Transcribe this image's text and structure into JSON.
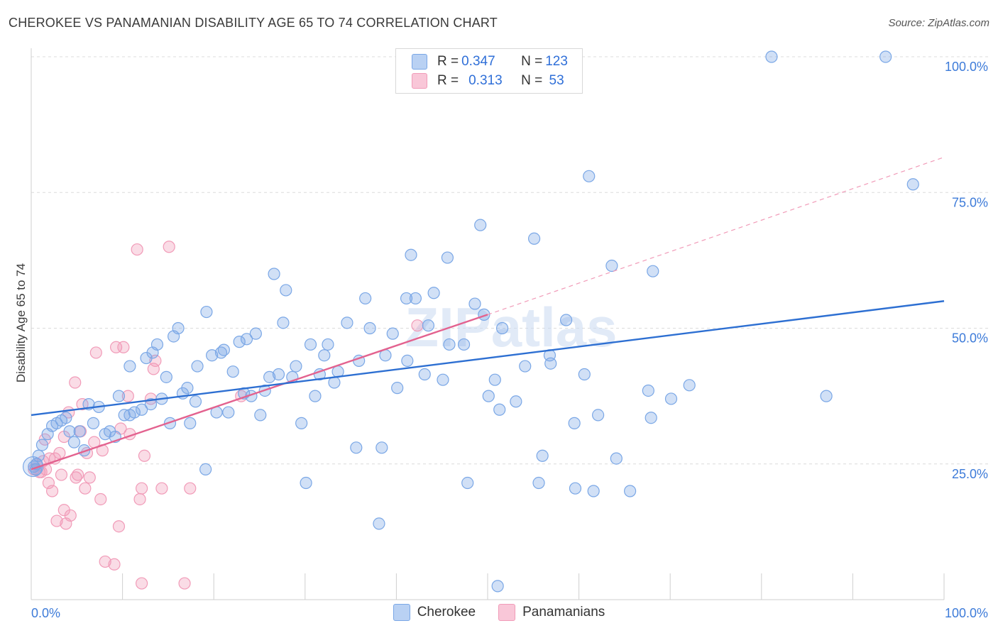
{
  "title": "CHEROKEE VS PANAMANIAN DISABILITY AGE 65 TO 74 CORRELATION CHART",
  "source": "Source: ZipAtlas.com",
  "watermark": "ZIPatlas",
  "legend_top": {
    "rows": [
      {
        "r_label": "R = ",
        "r_value": "0.347",
        "n_label": "N = ",
        "n_value": "123"
      },
      {
        "r_label": "R = ",
        "r_value": "0.313",
        "n_label": "N = ",
        "n_value": " 53"
      }
    ]
  },
  "chart_data": {
    "type": "scatter",
    "title": "CHEROKEE VS PANAMANIAN DISABILITY AGE 65 TO 74 CORRELATION CHART",
    "xlabel": "",
    "ylabel": "Disability Age 65 to 74",
    "xlim": [
      0,
      100
    ],
    "ylim": [
      0,
      100
    ],
    "x_tick_labels": [
      "0.0%",
      "100.0%"
    ],
    "y_tick_labels": [
      "25.0%",
      "50.0%",
      "75.0%",
      "100.0%"
    ],
    "y_ticks": [
      25,
      50,
      75,
      100
    ],
    "grid": "horizontal dashed",
    "legend_position": "bottom",
    "colors": {
      "cherokee": "#7aa7e6",
      "cherokee_line": "#2d6fd2",
      "panamanian": "#f19bb8",
      "panamanian_line": "#e3628f",
      "axis_text": "#3d7bd9"
    },
    "series": [
      {
        "name": "Cherokee",
        "r": 0.347,
        "n": 123,
        "trend": {
          "x": [
            0,
            100
          ],
          "y": [
            34.0,
            55.0
          ]
        },
        "points": [
          [
            0.3,
            24.5
          ],
          [
            0.5,
            24.0
          ],
          [
            0.6,
            25.0
          ],
          [
            0.8,
            26.5
          ],
          [
            1.2,
            28.5
          ],
          [
            1.8,
            30.5
          ],
          [
            2.3,
            32.0
          ],
          [
            2.8,
            32.5
          ],
          [
            3.3,
            33.0
          ],
          [
            3.8,
            33.5
          ],
          [
            4.2,
            31.0
          ],
          [
            4.7,
            29.0
          ],
          [
            5.3,
            31.0
          ],
          [
            5.8,
            27.5
          ],
          [
            6.3,
            36.0
          ],
          [
            6.8,
            32.5
          ],
          [
            7.4,
            35.5
          ],
          [
            8.1,
            30.5
          ],
          [
            8.6,
            31.0
          ],
          [
            9.2,
            30.0
          ],
          [
            9.6,
            37.5
          ],
          [
            10.2,
            34.0
          ],
          [
            10.8,
            43.0
          ],
          [
            10.8,
            34.0
          ],
          [
            11.3,
            34.5
          ],
          [
            12.1,
            35.0
          ],
          [
            12.6,
            44.5
          ],
          [
            13.1,
            36.0
          ],
          [
            13.3,
            45.5
          ],
          [
            13.8,
            47.0
          ],
          [
            14.3,
            37.0
          ],
          [
            14.8,
            41.0
          ],
          [
            15.2,
            32.5
          ],
          [
            15.6,
            48.5
          ],
          [
            16.1,
            50.0
          ],
          [
            16.6,
            38.0
          ],
          [
            17.1,
            39.0
          ],
          [
            17.4,
            32.5
          ],
          [
            18.0,
            36.5
          ],
          [
            18.2,
            43.0
          ],
          [
            19.1,
            24.0
          ],
          [
            19.2,
            53.0
          ],
          [
            19.8,
            45.0
          ],
          [
            20.3,
            34.5
          ],
          [
            20.8,
            45.5
          ],
          [
            21.1,
            46.0
          ],
          [
            21.6,
            34.5
          ],
          [
            22.1,
            42.0
          ],
          [
            22.8,
            47.5
          ],
          [
            23.3,
            38.0
          ],
          [
            23.6,
            48.0
          ],
          [
            24.1,
            37.5
          ],
          [
            24.6,
            49.0
          ],
          [
            25.1,
            34.0
          ],
          [
            25.6,
            38.5
          ],
          [
            26.1,
            41.0
          ],
          [
            26.6,
            60.0
          ],
          [
            27.1,
            41.5
          ],
          [
            27.6,
            51.0
          ],
          [
            27.9,
            57.0
          ],
          [
            28.6,
            41.0
          ],
          [
            29.0,
            43.0
          ],
          [
            29.6,
            32.5
          ],
          [
            30.1,
            21.5
          ],
          [
            30.6,
            47.0
          ],
          [
            31.1,
            37.5
          ],
          [
            31.6,
            41.5
          ],
          [
            32.1,
            45.0
          ],
          [
            32.5,
            47.0
          ],
          [
            33.2,
            40.0
          ],
          [
            33.6,
            42.0
          ],
          [
            34.6,
            51.0
          ],
          [
            35.6,
            28.0
          ],
          [
            35.9,
            44.0
          ],
          [
            36.6,
            55.5
          ],
          [
            37.1,
            50.0
          ],
          [
            38.1,
            14.0
          ],
          [
            38.4,
            28.0
          ],
          [
            38.8,
            45.0
          ],
          [
            39.6,
            49.0
          ],
          [
            40.1,
            39.0
          ],
          [
            41.1,
            55.5
          ],
          [
            41.2,
            44.0
          ],
          [
            41.6,
            63.5
          ],
          [
            42.1,
            55.5
          ],
          [
            43.1,
            41.5
          ],
          [
            43.5,
            50.5
          ],
          [
            44.1,
            56.5
          ],
          [
            45.1,
            40.5
          ],
          [
            45.6,
            63.0
          ],
          [
            45.8,
            47.0
          ],
          [
            47.4,
            47.0
          ],
          [
            47.8,
            21.5
          ],
          [
            48.6,
            54.5
          ],
          [
            49.2,
            69.0
          ],
          [
            49.6,
            52.5
          ],
          [
            50.1,
            37.5
          ],
          [
            50.8,
            40.5
          ],
          [
            51.1,
            2.5
          ],
          [
            51.3,
            35.0
          ],
          [
            51.6,
            50.0
          ],
          [
            53.1,
            36.5
          ],
          [
            54.1,
            43.0
          ],
          [
            55.1,
            66.5
          ],
          [
            55.6,
            21.5
          ],
          [
            56.0,
            26.5
          ],
          [
            56.8,
            45.0
          ],
          [
            56.9,
            43.5
          ],
          [
            58.6,
            51.5
          ],
          [
            59.5,
            32.5
          ],
          [
            59.6,
            20.5
          ],
          [
            60.6,
            41.5
          ],
          [
            61.1,
            78.0
          ],
          [
            61.6,
            20.0
          ],
          [
            62.1,
            34.0
          ],
          [
            63.6,
            61.5
          ],
          [
            64.1,
            26.0
          ],
          [
            65.6,
            20.0
          ],
          [
            67.6,
            38.5
          ],
          [
            67.9,
            33.5
          ],
          [
            68.1,
            60.5
          ],
          [
            70.1,
            37.0
          ],
          [
            72.1,
            39.5
          ],
          [
            81.1,
            100.0
          ],
          [
            87.1,
            37.5
          ],
          [
            93.6,
            100.0
          ],
          [
            96.6,
            76.5
          ]
        ]
      },
      {
        "name": "Panamanians",
        "r": 0.313,
        "n": 53,
        "trend": {
          "x": [
            0,
            50
          ],
          "y": [
            24.0,
            52.5
          ]
        },
        "trend_extension": {
          "x": [
            50,
            100
          ],
          "y": [
            52.5,
            81.5
          ]
        },
        "points": [
          [
            0.3,
            24.0
          ],
          [
            0.6,
            25.0
          ],
          [
            0.9,
            23.5
          ],
          [
            1.3,
            25.5
          ],
          [
            1.6,
            24.0
          ],
          [
            1.9,
            21.5
          ],
          [
            2.3,
            20.0
          ],
          [
            2.6,
            26.0
          ],
          [
            2.8,
            14.5
          ],
          [
            3.1,
            27.0
          ],
          [
            3.3,
            23.0
          ],
          [
            3.6,
            16.5
          ],
          [
            3.8,
            14.0
          ],
          [
            4.1,
            34.5
          ],
          [
            4.3,
            15.5
          ],
          [
            4.8,
            40.0
          ],
          [
            4.9,
            22.5
          ],
          [
            5.1,
            23.0
          ],
          [
            5.4,
            31.0
          ],
          [
            5.6,
            36.0
          ],
          [
            5.9,
            20.5
          ],
          [
            6.1,
            27.0
          ],
          [
            6.4,
            22.5
          ],
          [
            6.9,
            29.0
          ],
          [
            7.1,
            45.5
          ],
          [
            7.6,
            18.5
          ],
          [
            7.8,
            27.5
          ],
          [
            8.1,
            7.0
          ],
          [
            9.1,
            6.5
          ],
          [
            9.3,
            46.5
          ],
          [
            9.6,
            13.5
          ],
          [
            9.8,
            31.5
          ],
          [
            10.1,
            46.5
          ],
          [
            10.6,
            37.5
          ],
          [
            10.8,
            30.5
          ],
          [
            11.6,
            64.5
          ],
          [
            11.9,
            18.5
          ],
          [
            12.1,
            20.5
          ],
          [
            12.1,
            3.0
          ],
          [
            12.4,
            26.5
          ],
          [
            13.1,
            37.0
          ],
          [
            13.4,
            42.5
          ],
          [
            13.6,
            44.0
          ],
          [
            14.3,
            20.5
          ],
          [
            15.1,
            65.0
          ],
          [
            16.8,
            3.0
          ],
          [
            17.4,
            20.5
          ],
          [
            23.0,
            37.5
          ],
          [
            42.3,
            50.5
          ],
          [
            1.5,
            29.5
          ],
          [
            2.0,
            26.0
          ],
          [
            1.1,
            23.5
          ],
          [
            3.6,
            30.0
          ]
        ]
      }
    ]
  },
  "legend_bottom": [
    {
      "label": "Cherokee"
    },
    {
      "label": "Panamanians"
    }
  ]
}
